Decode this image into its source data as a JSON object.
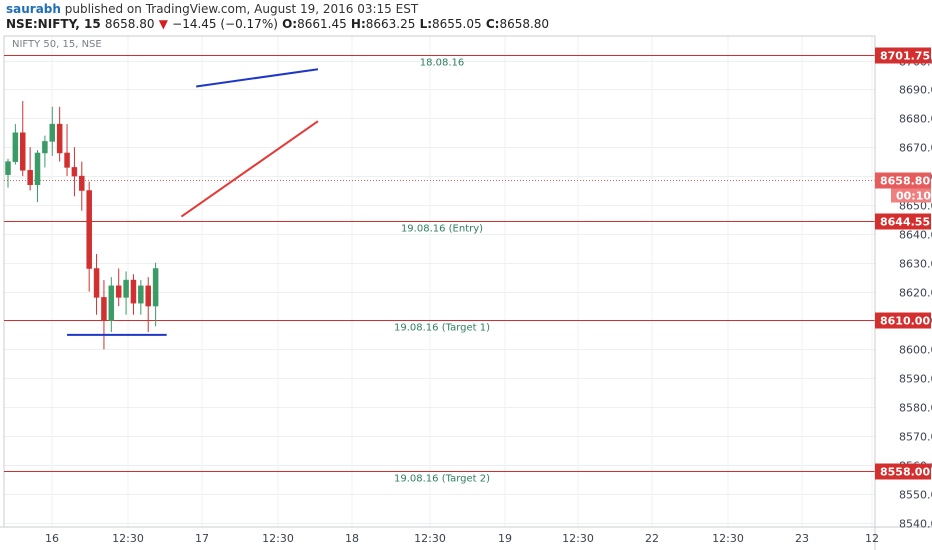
{
  "header": {
    "author": "saurabh",
    "published": " published on TradingView.com, August 19, 2016 03:15 EST",
    "symbol": "NSE:NIFTY, 15",
    "last": "8658.80",
    "change_arrow": "▼",
    "change": "−14.45 (−0.17%)",
    "o_label": "O:",
    "o_value": "8661.45",
    "h_label": "H:",
    "h_value": "8663.25",
    "l_label": "L:",
    "l_value": "8655.05",
    "c_label": "C:",
    "c_value": "8658.80"
  },
  "colors": {
    "up": "#3a9b66",
    "down": "#d03030",
    "horizontal_line": "#d32f2f",
    "blue_line": "#1f37c8",
    "red_line": "#e53935",
    "last_price": "#e65c5c",
    "countdown": "#f08080"
  },
  "chart_data": {
    "type": "candlestick",
    "title": "NIFTY 50, 15, NSE",
    "yticks": [
      8540,
      8550,
      8560,
      8570,
      8580,
      8590,
      8600,
      8610,
      8620,
      8630,
      8640,
      8650,
      8660,
      8670,
      8680,
      8690,
      8700
    ],
    "x_tick_labels": [
      "16",
      "12:30",
      "17",
      "12:30",
      "18",
      "12:30",
      "19",
      "12:30",
      "22",
      "12:30",
      "23",
      "12"
    ],
    "ylim": [
      8538.5,
      8708.5
    ],
    "horizontal_levels": [
      {
        "price": 8701.75,
        "label": "8701.75",
        "note": "18.08.16"
      },
      {
        "price": 8644.55,
        "label": "8644.55",
        "note": "19.08.16 (Entry)"
      },
      {
        "price": 8610.0,
        "label": "8610.00",
        "note": "19.08.16 (Target 1)"
      },
      {
        "price": 8558.0,
        "label": "8558.00",
        "note": "19.08.16 (Target 2)"
      }
    ],
    "last_price": {
      "price": 8658.8,
      "label": "8658.80",
      "countdown": "00:10"
    },
    "trendlines": [
      {
        "color": "blue",
        "from": [
          8,
          8605
        ],
        "to": [
          21.5,
          8605
        ]
      },
      {
        "color": "blue",
        "from": [
          25.5,
          8691
        ],
        "to": [
          42,
          8697
        ]
      },
      {
        "color": "red",
        "from": [
          23.5,
          8646
        ],
        "to": [
          42,
          8679
        ]
      }
    ],
    "candles": [
      [
        8660.5,
        8666,
        8656,
        8665
      ],
      [
        8665,
        8678,
        8664,
        8675
      ],
      [
        8675,
        8686,
        8660,
        8662
      ],
      [
        8662,
        8670,
        8655,
        8657
      ],
      [
        8657,
        8669,
        8651,
        8668
      ],
      [
        8668,
        8674,
        8663,
        8672
      ],
      [
        8672,
        8684,
        8667,
        8678
      ],
      [
        8678,
        8684,
        8665,
        8668
      ],
      [
        8668,
        8678,
        8660,
        8663
      ],
      [
        8663,
        8670,
        8653,
        8660
      ],
      [
        8660,
        8665,
        8648,
        8655
      ],
      [
        8655,
        8658,
        8620,
        8628
      ],
      [
        8628,
        8633,
        8612,
        8618
      ],
      [
        8618,
        8624,
        8600,
        8610
      ],
      [
        8610,
        8625,
        8606,
        8622
      ],
      [
        8622,
        8628,
        8615,
        8618
      ],
      [
        8618,
        8627,
        8612,
        8624
      ],
      [
        8624,
        8626,
        8612,
        8616
      ],
      [
        8616,
        8624,
        8612,
        8622
      ],
      [
        8622,
        8625,
        8606,
        8615
      ],
      [
        8615,
        8630,
        8608,
        8628
      ]
    ]
  }
}
